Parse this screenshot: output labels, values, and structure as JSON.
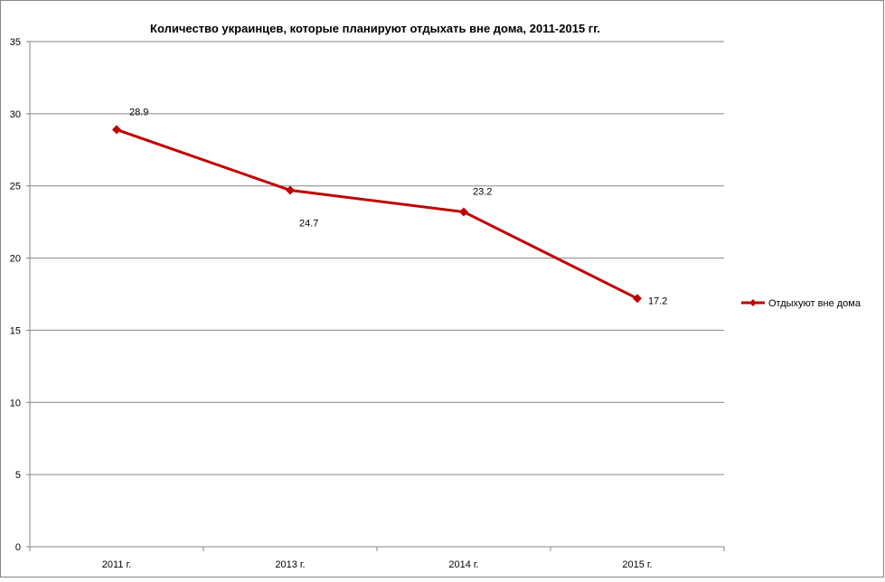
{
  "chart_data": {
    "type": "line",
    "title": "Количество украинцев, которые планируют отдыхать вне дома, 2011-2015  гг.",
    "xlabel": "",
    "ylabel": "",
    "categories": [
      "2011 г.",
      "2013 г.",
      "2014 г.",
      "2015 г."
    ],
    "series": [
      {
        "name": "Отдыхуют вне дома",
        "values": [
          28.9,
          24.7,
          23.2,
          17.2
        ],
        "labels": [
          "28.9",
          "24.7",
          "23.2",
          "17.2"
        ],
        "color": "#C00000"
      }
    ],
    "ylim": [
      0,
      35
    ],
    "yticks": [
      0,
      5,
      10,
      15,
      20,
      25,
      30,
      35
    ],
    "grid": true,
    "legend": "right"
  }
}
